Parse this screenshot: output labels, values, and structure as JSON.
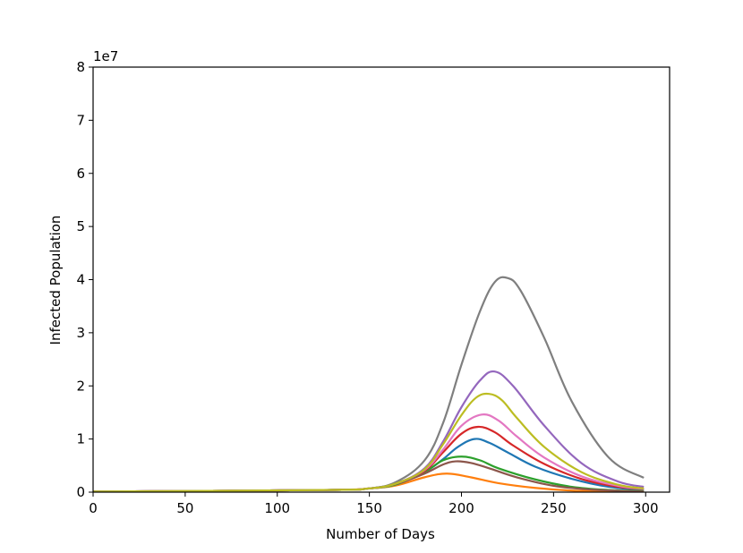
{
  "chart_data": {
    "type": "line",
    "xlabel": "Number of Days",
    "ylabel": "Infected Population",
    "y_offset_label": "1e7",
    "xlim": [
      0,
      313
    ],
    "ylim": [
      0,
      8
    ],
    "x_ticks": [
      0,
      50,
      100,
      150,
      200,
      250,
      300
    ],
    "x_tick_labels": [
      "0",
      "50",
      "100",
      "150",
      "200",
      "250",
      "300"
    ],
    "y_ticks": [
      0,
      1,
      2,
      3,
      4,
      5,
      6,
      7,
      8
    ],
    "y_tick_labels": [
      "0",
      "1",
      "2",
      "3",
      "4",
      "5",
      "6",
      "7",
      "8"
    ],
    "grid": false,
    "x_range": [
      0,
      299
    ],
    "series": [
      {
        "color": "#1f77b4",
        "x": [
          0,
          125,
          150,
          165,
          180,
          190,
          198,
          207,
          215,
          225,
          240,
          260,
          280,
          299
        ],
        "values": [
          0.01,
          0.04,
          0.07,
          0.17,
          0.38,
          0.62,
          0.85,
          1.0,
          0.93,
          0.75,
          0.48,
          0.25,
          0.1,
          0.04
        ]
      },
      {
        "color": "#ff7f0e",
        "x": [
          0,
          125,
          150,
          165,
          180,
          192,
          205,
          220,
          240,
          260,
          280,
          299
        ],
        "values": [
          0.01,
          0.04,
          0.07,
          0.13,
          0.28,
          0.35,
          0.28,
          0.17,
          0.08,
          0.03,
          0.02,
          0.01
        ]
      },
      {
        "color": "#2ca02c",
        "x": [
          0,
          125,
          150,
          165,
          180,
          190,
          200,
          210,
          220,
          240,
          260,
          280,
          299
        ],
        "values": [
          0.01,
          0.04,
          0.07,
          0.15,
          0.38,
          0.6,
          0.67,
          0.6,
          0.45,
          0.24,
          0.1,
          0.04,
          0.02
        ]
      },
      {
        "color": "#d62728",
        "x": [
          0,
          125,
          150,
          165,
          180,
          190,
          200,
          209,
          218,
          228,
          245,
          265,
          285,
          299
        ],
        "values": [
          0.01,
          0.04,
          0.07,
          0.17,
          0.4,
          0.75,
          1.1,
          1.23,
          1.13,
          0.88,
          0.53,
          0.25,
          0.1,
          0.06
        ]
      },
      {
        "color": "#9467bd",
        "x": [
          0,
          125,
          150,
          165,
          180,
          190,
          200,
          210,
          218,
          228,
          245,
          265,
          285,
          299
        ],
        "values": [
          0.01,
          0.04,
          0.07,
          0.17,
          0.45,
          0.95,
          1.6,
          2.1,
          2.27,
          2.0,
          1.25,
          0.55,
          0.2,
          0.1
        ]
      },
      {
        "color": "#8c564b",
        "x": [
          0,
          125,
          150,
          165,
          180,
          190,
          197,
          205,
          215,
          230,
          250,
          270,
          290,
          299
        ],
        "values": [
          0.01,
          0.04,
          0.07,
          0.16,
          0.35,
          0.52,
          0.58,
          0.55,
          0.45,
          0.28,
          0.12,
          0.05,
          0.02,
          0.01
        ]
      },
      {
        "color": "#e377c2",
        "x": [
          0,
          125,
          150,
          165,
          180,
          190,
          200,
          211,
          220,
          230,
          245,
          265,
          285,
          299
        ],
        "values": [
          0.01,
          0.04,
          0.07,
          0.17,
          0.42,
          0.8,
          1.25,
          1.46,
          1.35,
          1.05,
          0.65,
          0.3,
          0.12,
          0.06
        ]
      },
      {
        "color": "#7f7f7f",
        "x": [
          0,
          125,
          150,
          165,
          180,
          190,
          200,
          210,
          218,
          225,
          232,
          245,
          260,
          280,
          299
        ],
        "values": [
          0.01,
          0.04,
          0.07,
          0.2,
          0.6,
          1.3,
          2.4,
          3.4,
          3.95,
          4.03,
          3.8,
          2.9,
          1.7,
          0.65,
          0.27
        ]
      },
      {
        "color": "#bcbd22",
        "x": [
          0,
          125,
          150,
          165,
          180,
          190,
          200,
          208,
          215,
          222,
          230,
          245,
          265,
          285,
          299
        ],
        "values": [
          0.01,
          0.04,
          0.07,
          0.17,
          0.43,
          0.9,
          1.45,
          1.78,
          1.85,
          1.73,
          1.4,
          0.85,
          0.38,
          0.14,
          0.07
        ]
      }
    ]
  }
}
